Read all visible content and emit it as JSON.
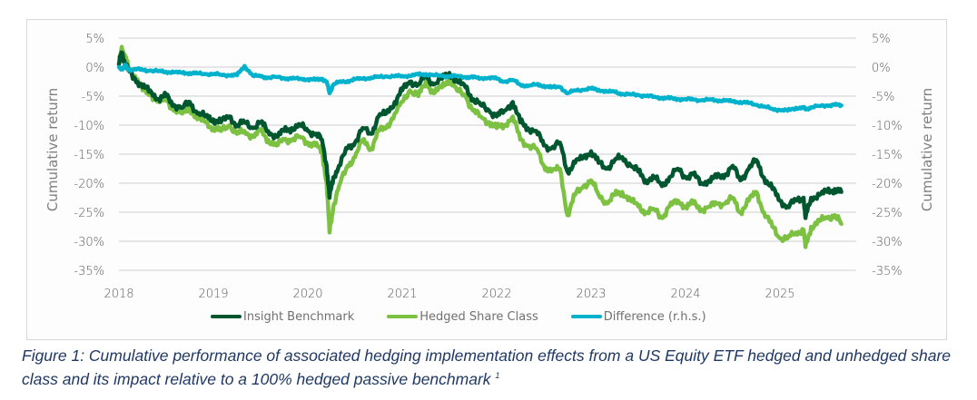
{
  "chart_data": {
    "type": "line",
    "title": "",
    "ylabel_left": "Cumulative return",
    "ylabel_right": "Cumulative return",
    "xlabel": "",
    "x_ticks": [
      "2018",
      "2019",
      "2020",
      "2021",
      "2022",
      "2023",
      "2024",
      "2025"
    ],
    "y_ticks": [
      "5%",
      "0%",
      "-5%",
      "-10%",
      "-15%",
      "-20%",
      "-25%",
      "-30%",
      "-35%"
    ],
    "y_tick_values": [
      5,
      0,
      -5,
      -10,
      -15,
      -20,
      -25,
      -30,
      -35
    ],
    "xlim": [
      2018,
      2025.7
    ],
    "ylim": [
      -35,
      5
    ],
    "ylim_right": [
      -35,
      5
    ],
    "grid": "horizontal",
    "legend_position": "bottom",
    "colors": {
      "Insight Benchmark": "#00562f",
      "Hedged Share Class": "#7dc142",
      "Difference (r.h.s.)": "#00b2cc"
    },
    "x": [
      2018.0,
      2018.03,
      2018.07,
      2018.1,
      2018.17,
      2018.25,
      2018.33,
      2018.42,
      2018.5,
      2018.58,
      2018.67,
      2018.75,
      2018.83,
      2018.92,
      2019.0,
      2019.08,
      2019.17,
      2019.25,
      2019.33,
      2019.42,
      2019.5,
      2019.58,
      2019.67,
      2019.75,
      2019.83,
      2019.92,
      2020.0,
      2020.08,
      2020.15,
      2020.2,
      2020.23,
      2020.27,
      2020.33,
      2020.42,
      2020.5,
      2020.58,
      2020.67,
      2020.75,
      2020.83,
      2020.92,
      2021.0,
      2021.08,
      2021.17,
      2021.25,
      2021.33,
      2021.42,
      2021.5,
      2021.58,
      2021.67,
      2021.75,
      2021.83,
      2021.92,
      2022.0,
      2022.08,
      2022.17,
      2022.25,
      2022.33,
      2022.42,
      2022.5,
      2022.58,
      2022.67,
      2022.75,
      2022.83,
      2022.92,
      2023.0,
      2023.08,
      2023.17,
      2023.25,
      2023.33,
      2023.42,
      2023.5,
      2023.58,
      2023.67,
      2023.75,
      2023.83,
      2023.92,
      2024.0,
      2024.08,
      2024.17,
      2024.25,
      2024.33,
      2024.42,
      2024.5,
      2024.58,
      2024.67,
      2024.75,
      2024.83,
      2024.92,
      2025.0,
      2025.08,
      2025.17,
      2025.25,
      2025.27,
      2025.33,
      2025.42,
      2025.5,
      2025.58,
      2025.65
    ],
    "series": [
      {
        "name": "Insight Benchmark",
        "values": [
          0.5,
          2.5,
          0.5,
          -0.5,
          -2.0,
          -3.5,
          -4.0,
          -5.5,
          -5.0,
          -6.5,
          -7.0,
          -6.0,
          -8.0,
          -8.5,
          -9.0,
          -9.5,
          -8.5,
          -10.0,
          -9.5,
          -10.5,
          -9.5,
          -11.0,
          -12.0,
          -11.0,
          -10.5,
          -10.0,
          -11.0,
          -11.5,
          -12.5,
          -17.0,
          -22.5,
          -19.0,
          -17.0,
          -14.0,
          -13.0,
          -10.5,
          -11.5,
          -8.5,
          -8.0,
          -6.0,
          -4.0,
          -2.5,
          -3.0,
          -1.5,
          -3.0,
          -2.0,
          -1.0,
          -2.5,
          -3.5,
          -5.5,
          -6.5,
          -7.5,
          -8.5,
          -7.5,
          -6.0,
          -9.5,
          -10.5,
          -11.0,
          -13.5,
          -14.0,
          -13.0,
          -18.0,
          -16.5,
          -15.5,
          -14.5,
          -16.5,
          -17.5,
          -16.0,
          -15.5,
          -17.0,
          -18.0,
          -19.5,
          -19.0,
          -20.5,
          -19.0,
          -17.5,
          -19.0,
          -18.5,
          -20.0,
          -19.5,
          -19.0,
          -18.5,
          -17.0,
          -19.5,
          -17.5,
          -16.0,
          -19.0,
          -21.0,
          -23.0,
          -24.0,
          -23.0,
          -22.5,
          -26.0,
          -22.5,
          -22.0,
          -21.5,
          -21.0,
          -21.5
        ]
      },
      {
        "name": "Hedged Share Class",
        "values": [
          0.5,
          3.5,
          1.5,
          0.0,
          -1.5,
          -4.0,
          -4.5,
          -6.0,
          -5.5,
          -7.5,
          -8.0,
          -7.0,
          -9.0,
          -9.5,
          -10.5,
          -11.0,
          -10.0,
          -11.5,
          -11.0,
          -12.0,
          -11.0,
          -12.5,
          -13.5,
          -12.5,
          -12.5,
          -12.0,
          -13.0,
          -13.5,
          -14.5,
          -20.0,
          -28.5,
          -24.0,
          -20.5,
          -17.0,
          -15.5,
          -12.5,
          -14.0,
          -11.0,
          -10.5,
          -8.0,
          -6.0,
          -4.0,
          -5.0,
          -2.5,
          -4.5,
          -3.5,
          -2.0,
          -4.0,
          -5.0,
          -7.5,
          -8.5,
          -9.5,
          -10.5,
          -10.0,
          -8.5,
          -12.5,
          -13.5,
          -14.0,
          -17.0,
          -18.0,
          -17.5,
          -25.5,
          -22.0,
          -20.5,
          -19.5,
          -22.0,
          -23.5,
          -22.0,
          -21.5,
          -23.0,
          -24.0,
          -25.0,
          -24.5,
          -26.0,
          -24.0,
          -23.0,
          -24.0,
          -23.5,
          -24.5,
          -24.0,
          -23.5,
          -23.5,
          -22.5,
          -25.0,
          -23.0,
          -21.5,
          -25.0,
          -27.5,
          -29.5,
          -29.5,
          -28.5,
          -28.0,
          -31.0,
          -27.5,
          -26.5,
          -26.0,
          -25.5,
          -27.0
        ]
      },
      {
        "name": "Difference (r.h.s.)",
        "values": [
          0.0,
          -0.3,
          0.3,
          -0.5,
          -0.3,
          -0.5,
          -0.6,
          -0.7,
          -0.8,
          -0.9,
          -1.0,
          -1.0,
          -1.1,
          -1.2,
          -1.2,
          -1.3,
          -1.4,
          -1.4,
          0.2,
          -1.5,
          -1.6,
          -1.8,
          -1.7,
          -1.9,
          -2.0,
          -2.0,
          -2.1,
          -2.2,
          -2.0,
          -2.5,
          -4.5,
          -3.0,
          -2.6,
          -2.4,
          -2.1,
          -2.0,
          -1.8,
          -1.7,
          -1.6,
          -1.6,
          -1.5,
          -1.5,
          -1.3,
          -1.2,
          -1.4,
          -1.5,
          -1.6,
          -1.5,
          -1.7,
          -1.8,
          -1.9,
          -1.8,
          -2.0,
          -2.5,
          -2.2,
          -3.0,
          -3.3,
          -3.0,
          -3.2,
          -3.5,
          -3.4,
          -4.5,
          -4.0,
          -3.9,
          -3.7,
          -3.9,
          -4.2,
          -4.3,
          -4.6,
          -4.7,
          -4.8,
          -5.0,
          -5.1,
          -5.3,
          -5.4,
          -5.5,
          -5.5,
          -5.6,
          -5.7,
          -5.6,
          -5.7,
          -5.8,
          -5.9,
          -6.0,
          -6.2,
          -6.5,
          -6.8,
          -7.2,
          -7.4,
          -7.5,
          -7.0,
          -7.0,
          -7.3,
          -6.9,
          -6.7,
          -6.6,
          -6.5,
          -6.6
        ]
      }
    ]
  },
  "legend": [
    {
      "label": "Insight Benchmark",
      "color": "#00562f"
    },
    {
      "label": "Hedged Share Class",
      "color": "#7dc142"
    },
    {
      "label": "Difference (r.h.s.)",
      "color": "#00b2cc"
    }
  ],
  "caption": {
    "text": "Figure 1: Cumulative performance of associated hedging implementation effects from a US Equity ETF hedged and unhedged share class and its impact relative to a 100% hedged passive benchmark",
    "footnote": "1"
  }
}
